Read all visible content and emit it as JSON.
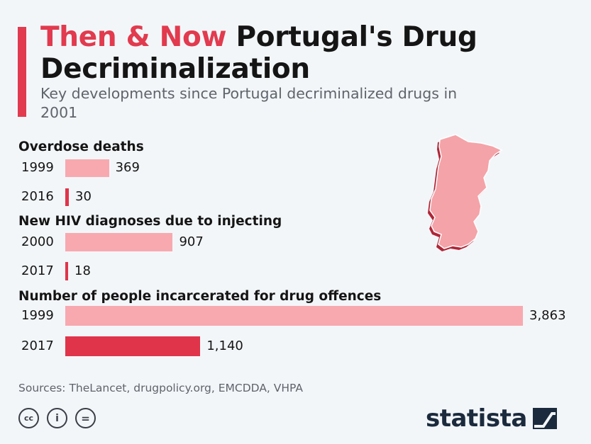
{
  "header": {
    "title_highlight": "Then & Now",
    "title_rest": "Portugal's Drug Decriminalization",
    "subtitle": "Key developments since Portugal decriminalized drugs in 2001"
  },
  "colors": {
    "accent": "#e23a4e",
    "then_bar": "#f8a9af",
    "now_bar": "#e0344b",
    "map_fill": "#f4a3a8"
  },
  "chart_data": {
    "type": "bar",
    "orientation": "horizontal",
    "x_scale_max": 3863,
    "groups": [
      {
        "label": "Overdose deaths",
        "bars": [
          {
            "year": "1999",
            "value": 369,
            "display": "369"
          },
          {
            "year": "2016",
            "value": 30,
            "display": "30"
          }
        ]
      },
      {
        "label": "New HIV diagnoses due to injecting",
        "bars": [
          {
            "year": "2000",
            "value": 907,
            "display": "907"
          },
          {
            "year": "2017",
            "value": 18,
            "display": "18"
          }
        ]
      },
      {
        "label": "Number of people incarcerated for drug offences",
        "bars": [
          {
            "year": "1999",
            "value": 3863,
            "display": "3,863"
          },
          {
            "year": "2017",
            "value": 1140,
            "display": "1,140"
          }
        ]
      }
    ]
  },
  "footer": {
    "sources": "Sources: TheLancet, drugpolicy.org, EMCDDA, VHPA",
    "license_icons": [
      {
        "name": "cc-icon",
        "glyph": "cc"
      },
      {
        "name": "attribution-icon",
        "glyph": "i"
      },
      {
        "name": "no-derivatives-icon",
        "glyph": "="
      }
    ],
    "brand": "statista"
  }
}
